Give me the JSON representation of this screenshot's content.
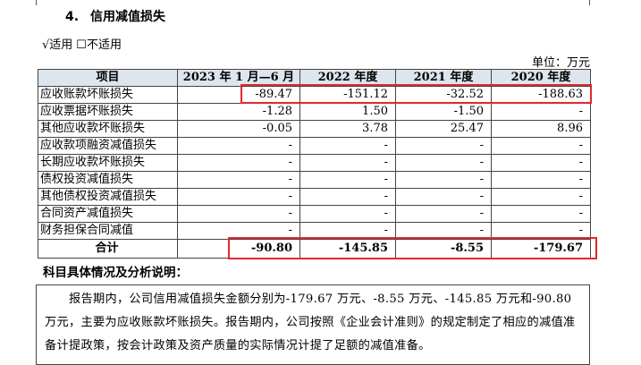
{
  "section": {
    "number": "4.",
    "title": "信用减值损失"
  },
  "applicable": {
    "checked": "√适用",
    "unchecked": "☐不适用"
  },
  "unit": "单位：万元",
  "table": {
    "headers": [
      "项目",
      "2023 年 1 月—6 月",
      "2022 年度",
      "2021 年度",
      "2020 年度"
    ],
    "rows": [
      [
        "应收账款坏账损失",
        "-89.47",
        "-151.12",
        "-32.52",
        "-188.63"
      ],
      [
        "应收票据坏账损失",
        "-1.28",
        "1.50",
        "-1.50",
        "-"
      ],
      [
        "其他应收款坏账损失",
        "-0.05",
        "3.78",
        "25.47",
        "8.96"
      ],
      [
        "应收款项融资减值损失",
        "-",
        "-",
        "-",
        "-"
      ],
      [
        "长期应收款坏账损失",
        "-",
        "-",
        "-",
        "-"
      ],
      [
        "债权投资减值损失",
        "-",
        "-",
        "-",
        "-"
      ],
      [
        "其他债权投资减值损失",
        "-",
        "-",
        "-",
        "-"
      ],
      [
        "合同资产减值损失",
        "-",
        "-",
        "-",
        "-"
      ],
      [
        "财务担保合同减值",
        "-",
        "-",
        "-",
        "-"
      ]
    ],
    "total": [
      "合计",
      "-90.80",
      "-145.85",
      "-8.55",
      "-179.67"
    ]
  },
  "analysis_title": "科目具体情况及分析说明：",
  "analysis_text": "报告期内，公司信用减值损失金额分别为-179.67 万元、-8.55 万元、-145.85 万元和-90.80 万元，主要为应收账款坏账损失。报告期内，公司按照《企业会计准则》的规定制定了相应的减值准备计提政策，按会计政策及资产质量的实际情况计提了足额的减值准备。",
  "colors": {
    "highlight": "#e0282e",
    "header_bg": "#dde6ef"
  }
}
